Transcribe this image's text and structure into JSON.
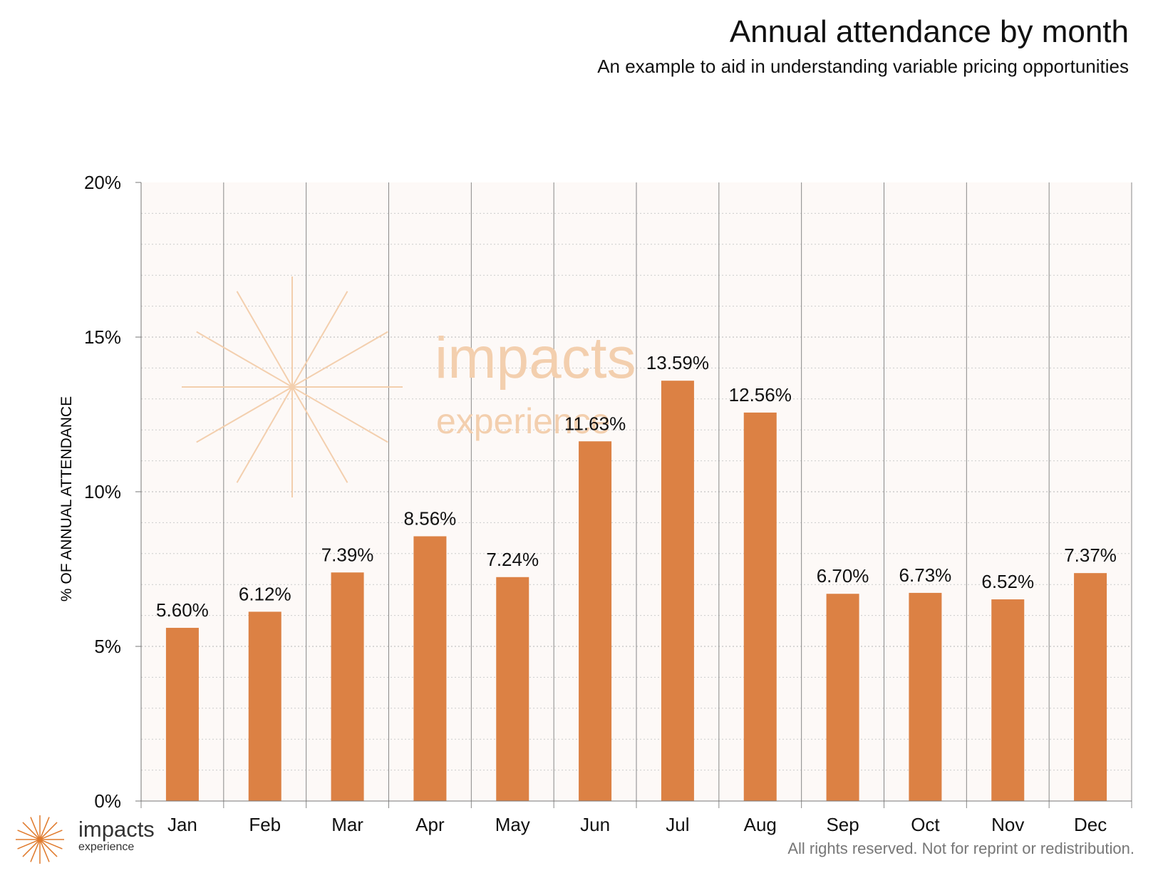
{
  "header": {
    "title": "Annual attendance by month",
    "subtitle": "An example to aid in understanding variable pricing opportunities"
  },
  "footer": {
    "note": "All rights reserved. Not for reprint or redistribution."
  },
  "logo": {
    "name": "impacts",
    "sub": "experience",
    "icon": "sunburst-icon",
    "color": "#e07a2c"
  },
  "watermark": {
    "name": "impacts",
    "sub": "experience",
    "color": "#f3cfae"
  },
  "chart_data": {
    "type": "bar",
    "title": "Annual attendance by month",
    "subtitle": "An example to aid in understanding variable pricing opportunities",
    "xlabel": "",
    "ylabel": "% OF ANNUAL ATTENDANCE",
    "categories": [
      "Jan",
      "Feb",
      "Mar",
      "Apr",
      "May",
      "Jun",
      "Jul",
      "Aug",
      "Sep",
      "Oct",
      "Nov",
      "Dec"
    ],
    "values": [
      5.6,
      6.12,
      7.39,
      8.56,
      7.24,
      11.63,
      13.59,
      12.56,
      6.7,
      6.73,
      6.52,
      7.37
    ],
    "data_labels": [
      "5.60%",
      "6.12%",
      "7.39%",
      "8.56%",
      "7.24%",
      "11.63%",
      "13.59%",
      "12.56%",
      "6.70%",
      "6.73%",
      "6.52%",
      "7.37%"
    ],
    "ylim": [
      0,
      20
    ],
    "yticks": [
      0,
      5,
      10,
      15,
      20
    ],
    "ytick_labels": [
      "0%",
      "5%",
      "10%",
      "15%",
      "20%"
    ],
    "grid": true,
    "legend": "none",
    "colors": {
      "bar": "#dc8144",
      "plot_background": "#fdf9f7",
      "gridline": "#cccccc",
      "separator": "#888888"
    }
  }
}
